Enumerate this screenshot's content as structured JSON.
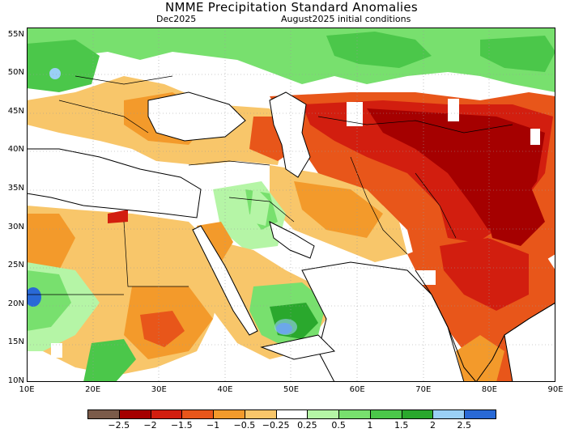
{
  "header": {
    "title": "NMME Precipitation Standard Anomalies",
    "valid_month": "Dec2025",
    "initial_conditions": "August2025 initial conditions"
  },
  "axes": {
    "lat_labels": [
      "55N",
      "50N",
      "45N",
      "40N",
      "35N",
      "30N",
      "25N",
      "20N",
      "15N",
      "10N"
    ],
    "lon_labels": [
      "10E",
      "20E",
      "30E",
      "40E",
      "50E",
      "60E",
      "70E",
      "80E",
      "90E"
    ]
  },
  "colorbar": {
    "colors": [
      "#7b5b4a",
      "#a50000",
      "#d21e0f",
      "#e8561a",
      "#f39a2b",
      "#f8c66a",
      "#ffffff",
      "#b5f5a6",
      "#78e06e",
      "#4bc74a",
      "#2aa82d",
      "#9ad0f5",
      "#2969d6"
    ],
    "labels": [
      "−2.5",
      "−2",
      "−1.5",
      "−1",
      "−0.5",
      "−0.25",
      "0.25",
      "0.5",
      "1",
      "1.5",
      "2",
      "2.5"
    ]
  },
  "palette": {
    "ocean": "#ffffff",
    "coast": "#000000",
    "grid": "#9a9a9a"
  }
}
